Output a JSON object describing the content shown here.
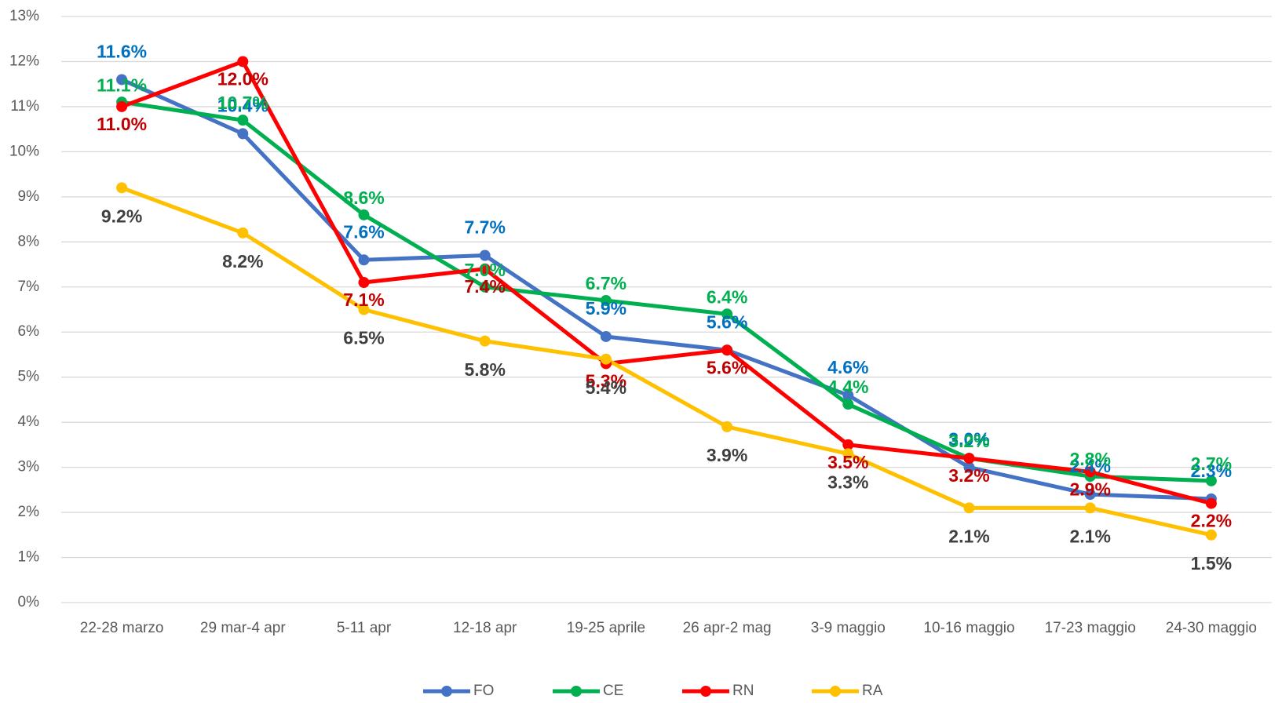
{
  "chart_data": {
    "type": "line",
    "categories": [
      "22-28 marzo",
      "29 mar-4 apr",
      "5-11 apr",
      "12-18 apr",
      "19-25 aprile",
      "26 apr-2 mag",
      "3-9 maggio",
      "10-16 maggio",
      "17-23 maggio",
      "24-30 maggio"
    ],
    "series": [
      {
        "name": "FO",
        "color": "#4472c4",
        "label_color": "#0070c0",
        "values": [
          11.6,
          10.4,
          7.6,
          7.7,
          5.9,
          5.6,
          4.6,
          3.0,
          2.4,
          2.3
        ],
        "value_labels": [
          "11.6%",
          "10.4%",
          "7.6%",
          "7.7%",
          "5.9%",
          "5.6%",
          "4.6%",
          "3.0%",
          "2.4%",
          "2.3%"
        ]
      },
      {
        "name": "CE",
        "color": "#00b050",
        "label_color": "#00b050",
        "values": [
          11.1,
          10.7,
          8.6,
          7.0,
          6.7,
          6.4,
          4.4,
          3.2,
          2.8,
          2.7
        ],
        "value_labels": [
          "11.1%",
          "10.7%",
          "8.6%",
          "7.0%",
          "6.7%",
          "6.4%",
          "4.4%",
          "3.2%",
          "2.8%",
          "2.7%"
        ]
      },
      {
        "name": "RN",
        "color": "#ff0000",
        "label_color": "#c00000",
        "values": [
          11.0,
          12.0,
          7.1,
          7.4,
          5.3,
          5.6,
          3.5,
          3.2,
          2.9,
          2.2
        ],
        "value_labels": [
          "11.0%",
          "12.0%",
          "7.1%",
          "7.4%",
          "5.3%",
          "5.6%",
          "3.5%",
          "3.2%",
          "2.9%",
          "2.2%"
        ]
      },
      {
        "name": "RA",
        "color": "#ffc000",
        "label_color": "#404040",
        "values": [
          9.2,
          8.2,
          6.5,
          5.8,
          5.4,
          3.9,
          3.3,
          2.1,
          2.1,
          1.5
        ],
        "value_labels": [
          "9.2%",
          "8.2%",
          "6.5%",
          "5.8%",
          "5.4%",
          "3.9%",
          "3.3%",
          "2.1%",
          "2.1%",
          "1.5%"
        ]
      }
    ],
    "ylim": [
      0,
      13
    ],
    "yticks": [
      {
        "value": 0,
        "label": "0%"
      },
      {
        "value": 1,
        "label": "1%"
      },
      {
        "value": 2,
        "label": "2%"
      },
      {
        "value": 3,
        "label": "3%"
      },
      {
        "value": 4,
        "label": "4%"
      },
      {
        "value": 5,
        "label": "5%"
      },
      {
        "value": 6,
        "label": "6%"
      },
      {
        "value": 7,
        "label": "7%"
      },
      {
        "value": 8,
        "label": "8%"
      },
      {
        "value": 9,
        "label": "9%"
      },
      {
        "value": 10,
        "label": "10%"
      },
      {
        "value": 11,
        "label": "11%"
      },
      {
        "value": 12,
        "label": "12%"
      },
      {
        "value": 13,
        "label": "13%"
      }
    ],
    "grid": true,
    "legend": "bottom"
  }
}
